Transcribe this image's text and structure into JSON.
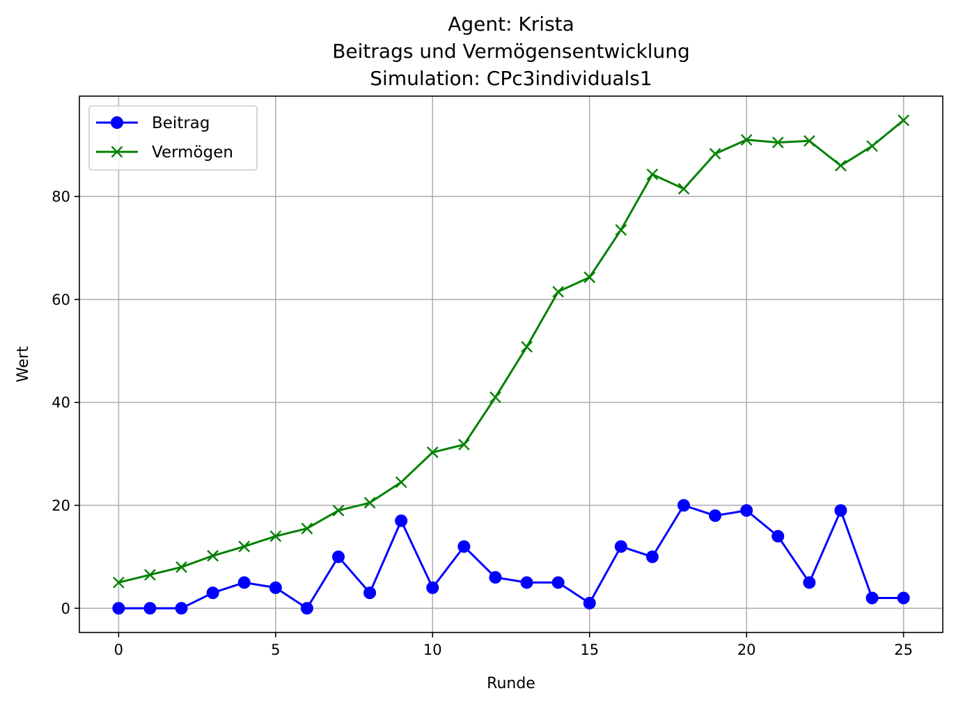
{
  "chart_data": {
    "type": "line",
    "title_lines": [
      "Agent: Krista",
      "Beitrags und Vermögensentwicklung",
      "Simulation: CPc3individuals1"
    ],
    "xlabel": "Runde",
    "ylabel": "Wert",
    "xlim": [
      -1.25,
      26.25
    ],
    "ylim": [
      -4.7,
      99.5
    ],
    "x_ticks": [
      0,
      5,
      10,
      15,
      20,
      25
    ],
    "y_ticks": [
      0,
      20,
      40,
      60,
      80
    ],
    "grid": true,
    "legend_position": "upper-left",
    "x": [
      0,
      1,
      2,
      3,
      4,
      5,
      6,
      7,
      8,
      9,
      10,
      11,
      12,
      13,
      14,
      15,
      16,
      17,
      18,
      19,
      20,
      21,
      22,
      23,
      24,
      25
    ],
    "series": [
      {
        "name": "Beitrag",
        "color": "#0000ff",
        "marker": "circle",
        "values": [
          0,
          0,
          0,
          3,
          5,
          4,
          0,
          10,
          3,
          17,
          4,
          12,
          6,
          5,
          5,
          1,
          12,
          10,
          20,
          18,
          19,
          14,
          5,
          19,
          2,
          2
        ]
      },
      {
        "name": "Vermögen",
        "color": "#008000",
        "marker": "x",
        "values": [
          5,
          6.5,
          8,
          10.2,
          12,
          14,
          15.5,
          19,
          20.5,
          24.5,
          30.3,
          31.8,
          41,
          50.8,
          61.5,
          64.3,
          73.5,
          84.3,
          81.5,
          88.3,
          91,
          90.5,
          90.8,
          86,
          89.8,
          94.8
        ]
      }
    ]
  }
}
